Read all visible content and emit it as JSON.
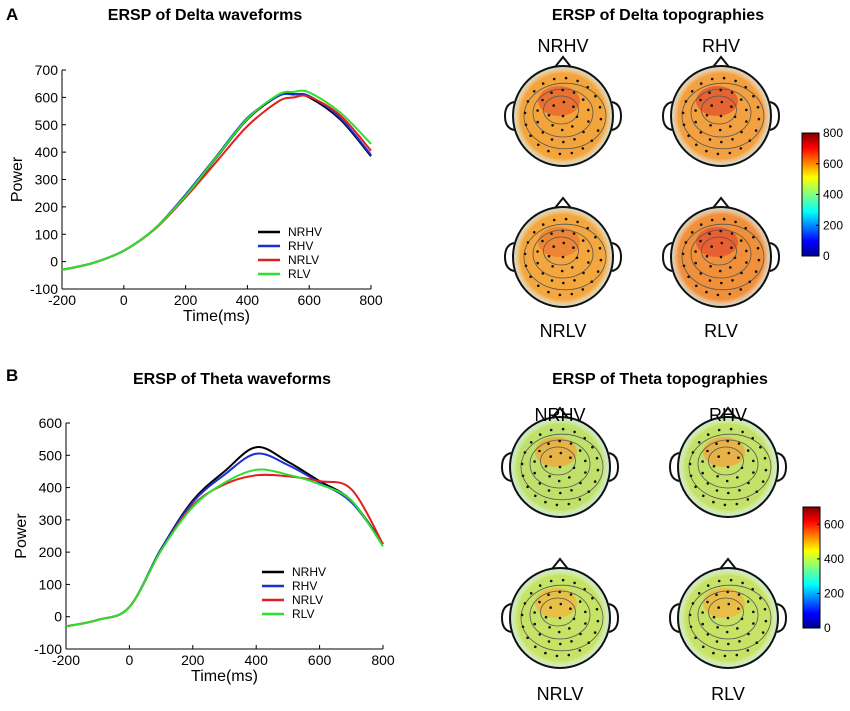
{
  "panels": [
    {
      "panel_label": "A",
      "waveform_title": "ERSP of Delta waveforms",
      "topography_title": "ERSP of Delta topographies",
      "colorbar": {
        "min": 0,
        "max": 800,
        "ticks": [
          "0",
          "200",
          "400",
          "600",
          "800"
        ]
      },
      "maps": [
        {
          "name": "NRHV",
          "fill": "#f3a53c",
          "spot": "#e8602f"
        },
        {
          "name": "RHV",
          "fill": "#f3a040",
          "spot": "#e2502e"
        },
        {
          "name": "NRLV",
          "fill": "#f3a73e",
          "spot": "#eb7a33"
        },
        {
          "name": "RLV",
          "fill": "#f0903a",
          "spot": "#e65030"
        }
      ]
    },
    {
      "panel_label": "B",
      "waveform_title": "ERSP of Theta waveforms",
      "topography_title": "ERSP of Theta topographies",
      "colorbar": {
        "min": 0,
        "max": 700,
        "ticks": [
          "0",
          "200",
          "400",
          "600"
        ]
      },
      "maps": [
        {
          "name": "NRHV",
          "fill": "#bfe06a",
          "spot": "#f4a43a"
        },
        {
          "name": "RHV",
          "fill": "#c4e268",
          "spot": "#f3a23c"
        },
        {
          "name": "NRLV",
          "fill": "#c7e366",
          "spot": "#f4b43c"
        },
        {
          "name": "RLV",
          "fill": "#c7e366",
          "spot": "#f4b23c"
        }
      ]
    }
  ],
  "chart_data": [
    {
      "type": "line",
      "title": "ERSP of Delta waveforms",
      "xlabel": "Time(ms)",
      "ylabel": "Power",
      "xlim": [
        -200,
        800
      ],
      "ylim": [
        -100,
        700
      ],
      "xticks": [
        "-200",
        "0",
        "200",
        "400",
        "600",
        "800"
      ],
      "yticks": [
        "-100",
        "0",
        "100",
        "200",
        "300",
        "400",
        "500",
        "600",
        "700"
      ],
      "x": [
        -200,
        -100,
        0,
        100,
        200,
        300,
        400,
        500,
        550,
        600,
        700,
        800
      ],
      "series": [
        {
          "name": "NRHV",
          "color": "#000000",
          "values": [
            -30,
            -5,
            40,
            120,
            240,
            380,
            520,
            605,
            612,
            600,
            520,
            385
          ]
        },
        {
          "name": "RHV",
          "color": "#1a2fd6",
          "values": [
            -30,
            -5,
            40,
            120,
            245,
            385,
            525,
            605,
            610,
            605,
            525,
            390
          ]
        },
        {
          "name": "NRLV",
          "color": "#e01f1f",
          "values": [
            -30,
            -5,
            40,
            118,
            235,
            365,
            495,
            585,
            600,
            602,
            535,
            405
          ]
        },
        {
          "name": "RLV",
          "color": "#2ee02e",
          "values": [
            -30,
            -5,
            40,
            120,
            240,
            382,
            522,
            610,
            620,
            618,
            545,
            430
          ]
        }
      ]
    },
    {
      "type": "line",
      "title": "ERSP of Theta waveforms",
      "xlabel": "Time(ms)",
      "ylabel": "Power",
      "xlim": [
        -200,
        800
      ],
      "ylim": [
        -100,
        600
      ],
      "xticks": [
        "-200",
        "0",
        "200",
        "400",
        "600",
        "800"
      ],
      "yticks": [
        "-100",
        "0",
        "100",
        "200",
        "300",
        "400",
        "500",
        "600"
      ],
      "x": [
        -200,
        -100,
        0,
        100,
        200,
        300,
        400,
        500,
        600,
        700,
        800
      ],
      "series": [
        {
          "name": "NRHV",
          "color": "#000000",
          "values": [
            -30,
            -10,
            30,
            210,
            360,
            450,
            525,
            480,
            420,
            360,
            225
          ]
        },
        {
          "name": "RHV",
          "color": "#1a2fd6",
          "values": [
            -30,
            -10,
            30,
            210,
            355,
            440,
            505,
            470,
            415,
            355,
            225
          ]
        },
        {
          "name": "NRLV",
          "color": "#e01f1f",
          "values": [
            -30,
            -10,
            30,
            205,
            345,
            410,
            438,
            435,
            420,
            395,
            225
          ]
        },
        {
          "name": "RLV",
          "color": "#2ee02e",
          "values": [
            -30,
            -10,
            30,
            205,
            340,
            415,
            455,
            440,
            410,
            360,
            218
          ]
        }
      ]
    }
  ]
}
